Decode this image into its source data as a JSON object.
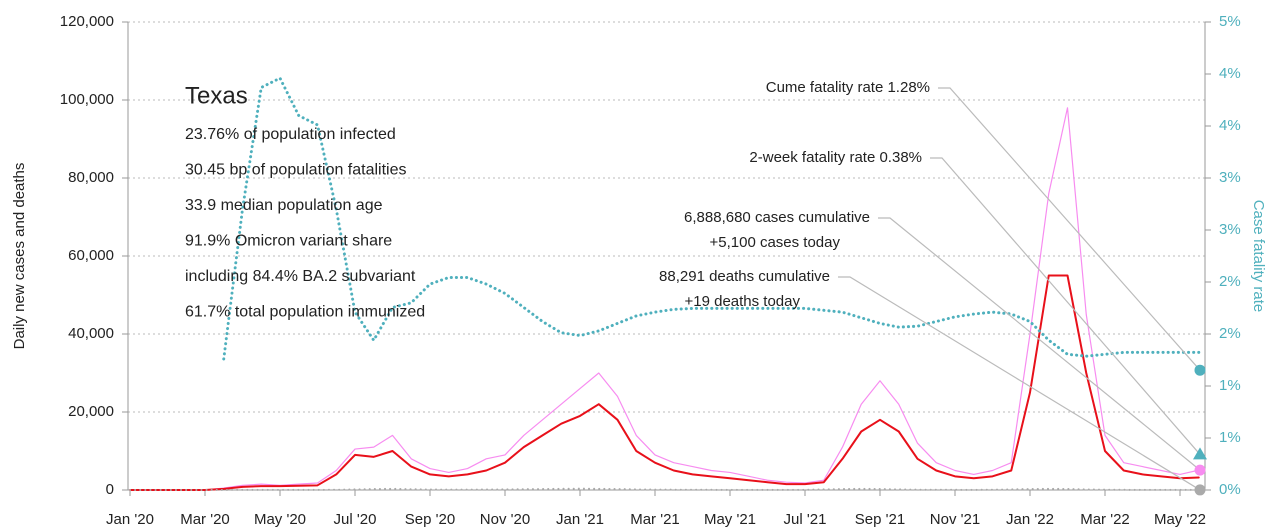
{
  "chart_data": {
    "type": "line",
    "ylabel": "Daily new cases and deaths",
    "y2label": "Case fatality rate",
    "categories": [
      "Jan '20",
      null,
      null,
      null,
      "Mar '20",
      null,
      null,
      null,
      "May '20",
      null,
      null,
      null,
      "Jul '20",
      null,
      null,
      null,
      "Sep '20",
      null,
      null,
      null,
      "Nov '20",
      null,
      null,
      null,
      "Jan '21",
      null,
      null,
      null,
      "Mar '21",
      null,
      null,
      null,
      "May '21",
      null,
      null,
      null,
      "Jul '21",
      null,
      null,
      null,
      "Sep '21",
      null,
      null,
      null,
      "Nov '21",
      null,
      null,
      null,
      "Jan '22",
      null,
      null,
      null,
      "Mar '22",
      null,
      null,
      null,
      "May '22",
      null
    ],
    "ylim": [
      0,
      120000
    ],
    "yticks": [
      0,
      {
        "value": 20000,
        "label": "20,000"
      },
      {
        "value": 40000,
        "label": "40,000"
      },
      {
        "value": 60000,
        "label": "60,000"
      },
      {
        "value": 80000,
        "label": "80,000"
      },
      {
        "value": 100000,
        "label": "100,000"
      },
      {
        "value": 120000,
        "label": "120,000"
      }
    ],
    "y2lim": [
      0,
      5
    ],
    "y2ticks": [
      {
        "value": 0,
        "label": "0%"
      },
      {
        "value": 0.5556,
        "label": "1%"
      },
      {
        "value": 1.1111,
        "label": "1%"
      },
      {
        "value": 1.6667,
        "label": "2%"
      },
      {
        "value": 2.2222,
        "label": "2%"
      },
      {
        "value": 2.7778,
        "label": "3%"
      },
      {
        "value": 3.3333,
        "label": "3%"
      },
      {
        "value": 3.8889,
        "label": "4%"
      },
      {
        "value": 4.4444,
        "label": "4%"
      },
      {
        "value": 5,
        "label": "5%"
      }
    ],
    "grid": true,
    "series": [
      {
        "color": "#f78cf0",
        "style": "solid",
        "width": 1.2,
        "values": [
          0,
          0,
          0,
          0,
          0,
          500,
          1200,
          1500,
          1200,
          1500,
          1800,
          5000,
          10500,
          11000,
          14000,
          8000,
          5500,
          4500,
          5500,
          8000,
          9000,
          14000,
          18000,
          22000,
          26000,
          30000,
          24000,
          14000,
          9000,
          7000,
          6000,
          5000,
          4500,
          3500,
          2500,
          2000,
          1800,
          2500,
          11000,
          22000,
          28000,
          22000,
          12000,
          7000,
          5000,
          4000,
          5000,
          7000,
          40000,
          76000,
          98000,
          45000,
          14000,
          7000,
          6000,
          5000,
          4000,
          5100
        ]
      },
      {
        "color": "#e8101a",
        "style": "solid",
        "width": 2,
        "values": [
          0,
          0,
          0,
          0,
          0,
          300,
          800,
          1000,
          1000,
          1100,
          1200,
          4000,
          9000,
          8500,
          10000,
          6000,
          4000,
          3500,
          4000,
          5000,
          7000,
          11000,
          14000,
          17000,
          19000,
          22000,
          18000,
          10000,
          7000,
          5000,
          4000,
          3500,
          3000,
          2500,
          2000,
          1500,
          1500,
          2000,
          8000,
          15000,
          18000,
          15000,
          8000,
          5000,
          3500,
          3000,
          3500,
          5000,
          25000,
          55000,
          55000,
          30000,
          10000,
          5000,
          4000,
          3500,
          3000,
          3200
        ]
      },
      {
        "color": "#aaaaaa",
        "style": "dotted",
        "width": 2,
        "values": [
          0,
          0,
          0,
          0,
          0,
          10,
          30,
          40,
          30,
          30,
          40,
          60,
          150,
          250,
          300,
          200,
          120,
          100,
          100,
          120,
          150,
          200,
          250,
          300,
          350,
          300,
          250,
          150,
          100,
          80,
          60,
          50,
          40,
          30,
          30,
          30,
          40,
          150,
          250,
          300,
          250,
          150,
          80,
          60,
          50,
          40,
          60,
          150,
          250,
          300,
          250,
          150,
          80,
          50,
          40,
          30,
          25,
          19
        ]
      },
      {
        "color": "#4fb0bd",
        "style": "dotted",
        "width": 3,
        "axis": "y2",
        "values": [
          null,
          null,
          null,
          null,
          null,
          1.4,
          3.0,
          4.3,
          4.4,
          4.0,
          3.9,
          3.0,
          1.9,
          1.6,
          1.95,
          2.0,
          2.2,
          2.27,
          2.27,
          2.2,
          2.1,
          1.95,
          1.8,
          1.68,
          1.65,
          1.7,
          1.78,
          1.86,
          1.9,
          1.93,
          1.94,
          1.94,
          1.94,
          1.94,
          1.94,
          1.94,
          1.94,
          1.92,
          1.9,
          1.84,
          1.78,
          1.74,
          1.75,
          1.8,
          1.85,
          1.88,
          1.9,
          1.88,
          1.8,
          1.6,
          1.45,
          1.43,
          1.45,
          1.47,
          1.47,
          1.47,
          1.47,
          1.47
        ]
      }
    ],
    "info": {
      "title": "Texas",
      "lines": [
        "23.76% of population infected",
        "30.45 bp of population fatalities",
        "33.9 median population age",
        "91.9% Omicron variant share",
        "including 84.4% BA.2 subvariant",
        "61.7% total population immunized"
      ]
    },
    "annotations": [
      {
        "text": [
          "Cume fatality rate 1.28%"
        ],
        "value": 1.28,
        "axis": "y2",
        "marker": "circle",
        "color": "#4fb0bd"
      },
      {
        "text": [
          "2-week fatality rate 0.38%"
        ],
        "value": 0.38,
        "axis": "y2",
        "marker": "triangle",
        "color": "#4fb0bd"
      },
      {
        "text": [
          "6,888,680 cases cumulative",
          "+5,100 cases today"
        ],
        "value": 5100,
        "marker": "circle",
        "color": "#f78cf0"
      },
      {
        "text": [
          "88,291 deaths cumulative",
          "+19 deaths today"
        ],
        "value": 19,
        "marker": "circle",
        "color": "#aaaaaa"
      }
    ]
  }
}
